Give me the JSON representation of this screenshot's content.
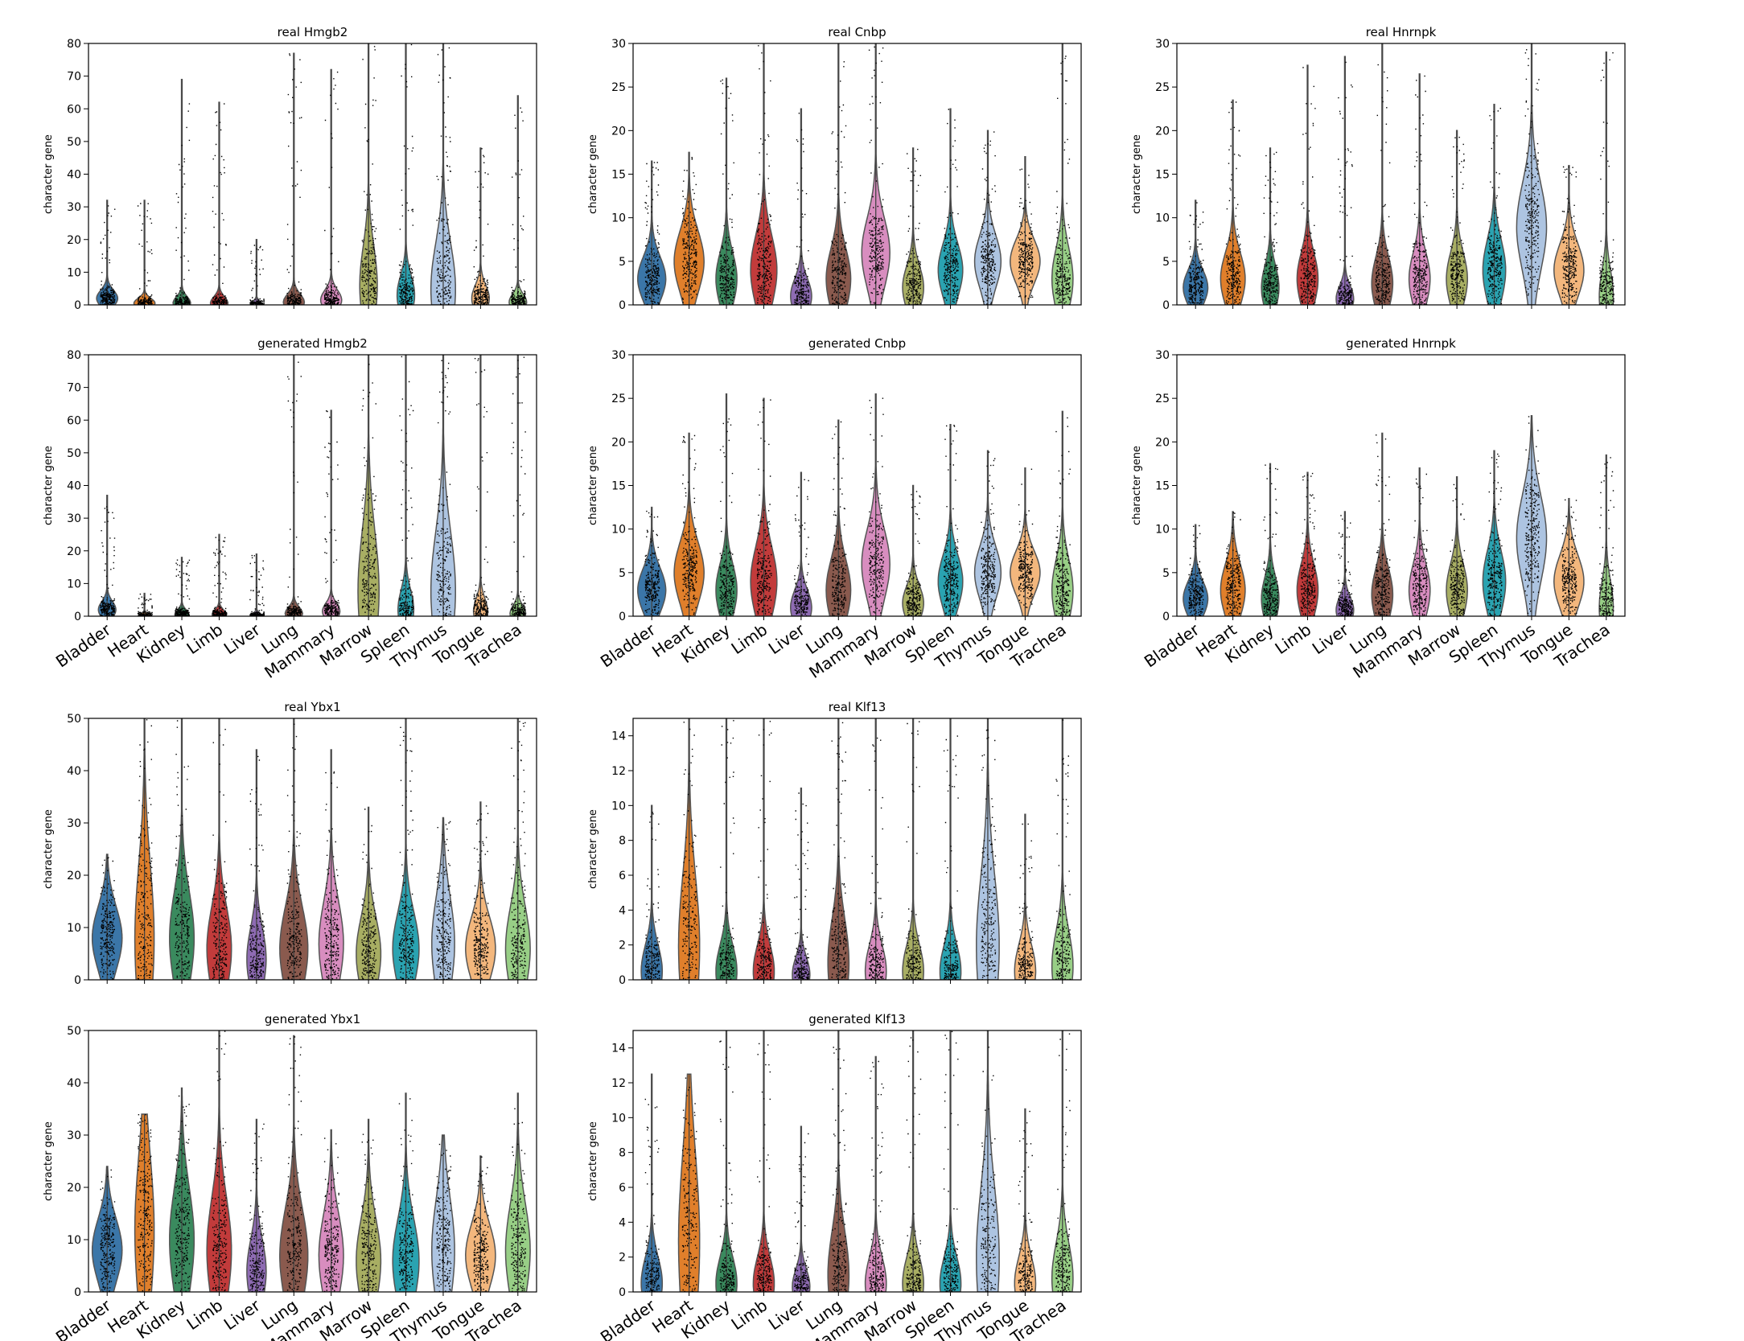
{
  "categories": [
    "Bladder",
    "Heart",
    "Kidney",
    "Limb",
    "Liver",
    "Lung",
    "Mammary",
    "Marrow",
    "Spleen",
    "Thymus",
    "Tongue",
    "Trachea"
  ],
  "colors": [
    "#3b76a8",
    "#e07f2b",
    "#3a8a5e",
    "#c23b3b",
    "#8e6bb3",
    "#8a5a4e",
    "#d88dbf",
    "#a8ae63",
    "#2aa3b1",
    "#adc4e1",
    "#f3b77d",
    "#98cf86"
  ],
  "chart_data": [
    {
      "type": "violin",
      "title": "real Hmgb2",
      "ylabel": "character gene",
      "ylim": [
        0,
        80
      ],
      "yticks": [
        0,
        10,
        20,
        30,
        40,
        50,
        60,
        70,
        80
      ],
      "modes": [
        2,
        0.5,
        0.5,
        0.5,
        0.2,
        0.8,
        1.5,
        6,
        3,
        5,
        2,
        0.8
      ],
      "spreads": [
        2.5,
        1.5,
        2,
        2,
        1,
        2.5,
        3,
        12,
        6,
        14,
        4,
        2.5
      ],
      "max_values": [
        32,
        32,
        69,
        62,
        20,
        77,
        72,
        80,
        80,
        80,
        48,
        64
      ],
      "widths": [
        0.6,
        0.6,
        0.5,
        0.5,
        0.3,
        0.6,
        0.6,
        0.5,
        0.5,
        0.7,
        0.5,
        0.5
      ]
    },
    {
      "type": "violin",
      "title": "real Cnbp",
      "ylabel": "character gene",
      "ylim": [
        0,
        30
      ],
      "yticks": [
        0,
        5,
        10,
        15,
        20,
        25,
        30
      ],
      "modes": [
        3,
        5,
        3,
        4,
        1,
        3,
        6,
        2,
        4,
        5,
        5,
        3
      ],
      "spreads": [
        2.5,
        3.5,
        3,
        4,
        2,
        3.5,
        4,
        2.5,
        3,
        3,
        2.5,
        3.5
      ],
      "max_values": [
        16.5,
        17.5,
        26,
        30,
        22.5,
        30,
        30,
        18,
        22.5,
        20,
        17,
        30
      ],
      "widths": [
        0.8,
        0.85,
        0.6,
        0.75,
        0.6,
        0.7,
        0.8,
        0.6,
        0.7,
        0.75,
        0.85,
        0.6
      ]
    },
    {
      "type": "violin",
      "title": "real Hnrnpk",
      "ylabel": "character gene",
      "ylim": [
        0,
        30
      ],
      "yticks": [
        0,
        5,
        10,
        15,
        20,
        25,
        30
      ],
      "modes": [
        2,
        3,
        2,
        3,
        0.7,
        2.5,
        3,
        3,
        4,
        9,
        4,
        1
      ],
      "spreads": [
        2,
        3,
        2.5,
        3,
        1.5,
        3,
        3,
        3,
        3.5,
        5,
        3,
        3
      ],
      "max_values": [
        12,
        23.5,
        18,
        27.5,
        28.5,
        30,
        26.5,
        20,
        23,
        30,
        16,
        29
      ],
      "widths": [
        0.7,
        0.7,
        0.5,
        0.6,
        0.5,
        0.6,
        0.6,
        0.6,
        0.65,
        0.85,
        0.85,
        0.4
      ]
    },
    {
      "type": "violin",
      "title": "generated Hmgb2",
      "ylabel": "character gene",
      "ylim": [
        0,
        80
      ],
      "yticks": [
        0,
        10,
        20,
        30,
        40,
        50,
        60,
        70,
        80
      ],
      "modes": [
        2,
        0.2,
        0.5,
        0.5,
        0.2,
        0.8,
        1.5,
        8,
        2,
        8,
        1.5,
        0.8
      ],
      "spreads": [
        2.5,
        0.7,
        1.5,
        1.5,
        0.8,
        2,
        2.5,
        18,
        6,
        18,
        4,
        2.5
      ],
      "max_values": [
        37,
        7,
        18,
        25,
        19,
        80,
        63,
        80,
        80,
        80,
        80,
        80
      ],
      "widths": [
        0.5,
        0.3,
        0.4,
        0.4,
        0.3,
        0.5,
        0.5,
        0.6,
        0.45,
        0.7,
        0.4,
        0.45
      ]
    },
    {
      "type": "violin",
      "title": "generated Cnbp",
      "ylabel": "character gene",
      "ylim": [
        0,
        30
      ],
      "yticks": [
        0,
        5,
        10,
        15,
        20,
        25,
        30
      ],
      "modes": [
        3,
        5,
        3,
        4,
        1,
        3,
        6,
        1.5,
        4,
        5,
        5,
        3
      ],
      "spreads": [
        2.5,
        3.5,
        3,
        4,
        2,
        3.5,
        4,
        2,
        3,
        3,
        2.5,
        3.5
      ],
      "max_values": [
        12.5,
        21,
        25.5,
        25,
        16.5,
        22.5,
        25.5,
        15,
        22,
        19,
        17,
        23.5
      ],
      "widths": [
        0.8,
        0.85,
        0.6,
        0.75,
        0.6,
        0.7,
        0.8,
        0.6,
        0.7,
        0.75,
        0.85,
        0.6
      ]
    },
    {
      "type": "violin",
      "title": "generated Hnrnpk",
      "ylabel": "character gene",
      "ylim": [
        0,
        30
      ],
      "yticks": [
        0,
        5,
        10,
        15,
        20,
        25,
        30
      ],
      "modes": [
        2,
        3,
        2,
        3,
        0.7,
        2.5,
        3,
        3,
        4,
        9,
        4,
        1
      ],
      "spreads": [
        2,
        3,
        2.5,
        3,
        1.5,
        3,
        3,
        3,
        3.5,
        5,
        3,
        3
      ],
      "max_values": [
        10.5,
        12,
        17.5,
        16.5,
        12,
        21,
        17,
        16,
        19,
        23,
        13.5,
        18.5
      ],
      "widths": [
        0.7,
        0.7,
        0.5,
        0.6,
        0.5,
        0.6,
        0.6,
        0.6,
        0.65,
        0.85,
        0.85,
        0.4
      ]
    },
    {
      "type": "violin",
      "title": "real Ybx1",
      "ylabel": "character gene",
      "ylim": [
        0,
        50
      ],
      "yticks": [
        0,
        10,
        20,
        30,
        40,
        50
      ],
      "modes": [
        8,
        8,
        8,
        6,
        4,
        6,
        7,
        5,
        6,
        7,
        6,
        6
      ],
      "spreads": [
        6,
        14,
        9,
        8,
        6,
        8,
        8,
        7,
        7,
        9,
        6,
        8
      ],
      "max_values": [
        24,
        50,
        50,
        50,
        44,
        50,
        44,
        33,
        50,
        31,
        34,
        50
      ],
      "widths": [
        0.85,
        0.55,
        0.7,
        0.7,
        0.55,
        0.8,
        0.7,
        0.7,
        0.75,
        0.65,
        0.85,
        0.7
      ]
    },
    {
      "type": "violin",
      "title": "real Klf13",
      "ylabel": "character gene",
      "ylim": [
        0,
        15
      ],
      "yticks": [
        0,
        2,
        4,
        6,
        8,
        10,
        12,
        14
      ],
      "modes": [
        0.5,
        2,
        0.5,
        0.5,
        0.3,
        1,
        0.5,
        0.5,
        0.5,
        2,
        0.5,
        0.8
      ],
      "spreads": [
        1.5,
        4,
        1.5,
        1.5,
        1,
        2.5,
        1.5,
        1.5,
        1.5,
        4,
        1.5,
        2
      ],
      "max_values": [
        10,
        15,
        15,
        15,
        11,
        15,
        15,
        15,
        15,
        15,
        9.5,
        15
      ],
      "widths": [
        0.6,
        0.6,
        0.6,
        0.6,
        0.5,
        0.6,
        0.6,
        0.6,
        0.6,
        0.65,
        0.6,
        0.6
      ]
    },
    {
      "type": "violin",
      "title": "generated Ybx1",
      "ylabel": "character gene",
      "ylim": [
        0,
        50
      ],
      "yticks": [
        0,
        10,
        20,
        30,
        40,
        50
      ],
      "modes": [
        8,
        12,
        10,
        8,
        4,
        7,
        7,
        6,
        6,
        8,
        7,
        8
      ],
      "spreads": [
        6,
        14,
        10,
        10,
        6,
        9,
        8,
        8,
        8,
        10,
        6,
        9
      ],
      "max_values": [
        24,
        34,
        39,
        50,
        33,
        49,
        31,
        33,
        38,
        30,
        26,
        38
      ],
      "widths": [
        0.85,
        0.55,
        0.7,
        0.7,
        0.55,
        0.8,
        0.7,
        0.7,
        0.75,
        0.65,
        0.85,
        0.7
      ]
    },
    {
      "type": "violin",
      "title": "generated Klf13",
      "ylabel": "character gene",
      "ylim": [
        0,
        15
      ],
      "yticks": [
        0,
        2,
        4,
        6,
        8,
        10,
        12,
        14
      ],
      "modes": [
        0.5,
        3,
        0.5,
        0.5,
        0.3,
        1,
        0.5,
        0.5,
        0.5,
        2,
        0.5,
        0.8
      ],
      "spreads": [
        1.5,
        5,
        1.5,
        1.5,
        1,
        2.5,
        1.5,
        1.5,
        1.5,
        4,
        1.5,
        2
      ],
      "max_values": [
        12.5,
        12.5,
        15,
        15,
        9.5,
        15,
        13.5,
        15,
        15,
        15,
        10.5,
        15
      ],
      "widths": [
        0.6,
        0.6,
        0.6,
        0.6,
        0.5,
        0.6,
        0.6,
        0.6,
        0.6,
        0.65,
        0.6,
        0.6
      ]
    }
  ]
}
